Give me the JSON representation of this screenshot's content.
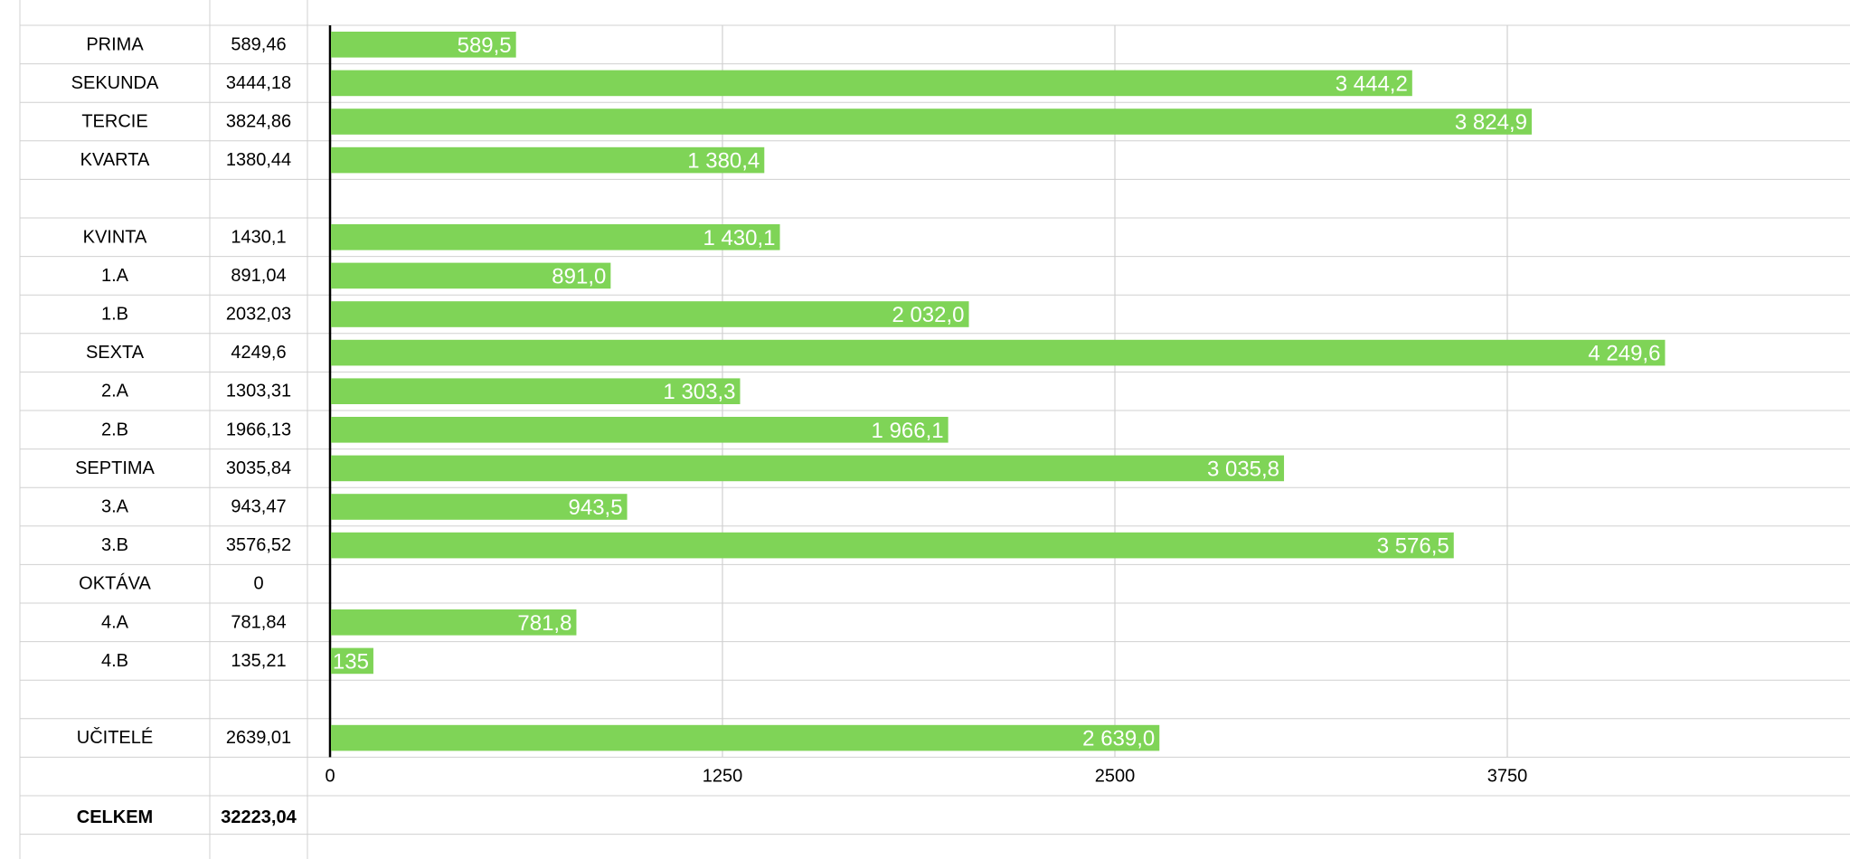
{
  "chart_data": {
    "type": "bar",
    "orientation": "horizontal",
    "categories": [
      "PRIMA",
      "SEKUNDA",
      "TERCIE",
      "KVARTA",
      "KVINTA",
      "1.A",
      "1.B",
      "SEXTA",
      "2.A",
      "2.B",
      "SEPTIMA",
      "3.A",
      "3.B",
      "OKTÁVA",
      "4.A",
      "4.B",
      "UČITELÉ"
    ],
    "values": [
      589.46,
      3444.18,
      3824.86,
      1380.44,
      1430.1,
      891.04,
      2032.03,
      4249.6,
      1303.31,
      1966.13,
      3035.84,
      943.47,
      3576.52,
      0,
      781.84,
      135.21,
      2639.01
    ],
    "value_cells": [
      "589,46",
      "3444,18",
      "3824,86",
      "1380,44",
      "1430,1",
      "891,04",
      "2032,03",
      "4249,6",
      "1303,31",
      "1966,13",
      "3035,84",
      "943,47",
      "3576,52",
      "0",
      "781,84",
      "135,21",
      "2639,01"
    ],
    "bar_labels": [
      "589,5",
      "3 444,2",
      "3 824,9",
      "1 380,4",
      "1 430,1",
      "891,0",
      "2 032,0",
      "4 249,6",
      "1 303,3",
      "1 966,1",
      "3 035,8",
      "943,5",
      "3 576,5",
      "",
      "781,8",
      "135",
      "2 639,0"
    ],
    "x_ticks": [
      "0",
      "1250",
      "2500",
      "3750"
    ],
    "x_tick_values": [
      0,
      1250,
      2500,
      3750
    ],
    "xlim": [
      0,
      5000
    ],
    "bar_color": "#7fd457",
    "grid": true,
    "title": "",
    "xlabel": "",
    "ylabel": ""
  },
  "total": {
    "label": "CELKEM",
    "value": "32223,04"
  },
  "colors": {
    "grid": "#d0d0d0",
    "axis": "#000000",
    "bar": "#7fd457",
    "bar_text": "#ffffff"
  }
}
